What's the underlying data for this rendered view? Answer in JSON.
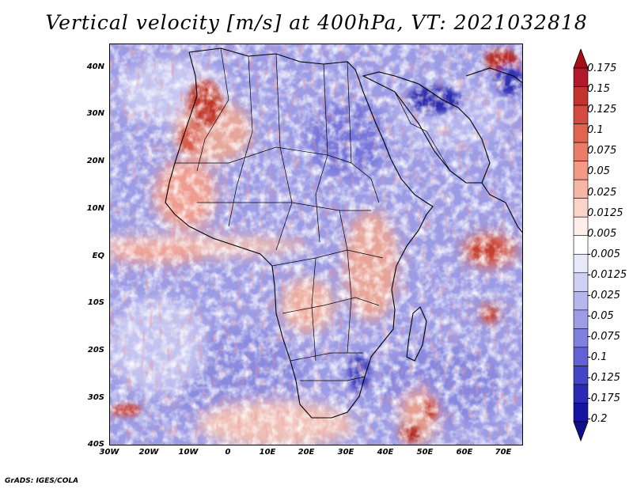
{
  "title": "Vertical velocity [m/s] at 400hPa, VT: 2021032818",
  "credit": "GrADS: IGES/COLA",
  "lat_labels": [
    "40N",
    "30N",
    "20N",
    "10N",
    "EQ",
    "10S",
    "20S",
    "30S",
    "40S"
  ],
  "lon_labels": [
    "30W",
    "20W",
    "10W",
    "0",
    "10E",
    "20E",
    "30E",
    "40E",
    "50E",
    "60E",
    "70E"
  ],
  "map_extent": {
    "lon_min": -30,
    "lon_max": 75,
    "lat_min": -40,
    "lat_max": 45
  },
  "colorbar": {
    "labels": [
      "0.175",
      "0.15",
      "0.125",
      "0.1",
      "0.075",
      "0.05",
      "0.025",
      "0.0125",
      "0.005",
      "-0.005",
      "-0.0125",
      "-0.025",
      "-0.05",
      "-0.075",
      "-0.1",
      "-0.125",
      "-0.175",
      "-0.2"
    ],
    "colors": [
      "#b2182b",
      "#c3332e",
      "#d44a3f",
      "#e06450",
      "#e97d68",
      "#f29a86",
      "#f6b6a6",
      "#fad3c9",
      "#fdeee9",
      "#ffffff",
      "#e8e8fb",
      "#d0d0f5",
      "#b6b6ef",
      "#9c9ce7",
      "#8080de",
      "#6262d4",
      "#4444c6",
      "#2a2ab2",
      "#1414a0"
    ],
    "top_arrow_color": "#a50f15",
    "bottom_arrow_color": "#10108c"
  },
  "colors": {
    "positive": "#e04a4a",
    "negative": "#5555dd",
    "neutral": "#ffffff"
  }
}
